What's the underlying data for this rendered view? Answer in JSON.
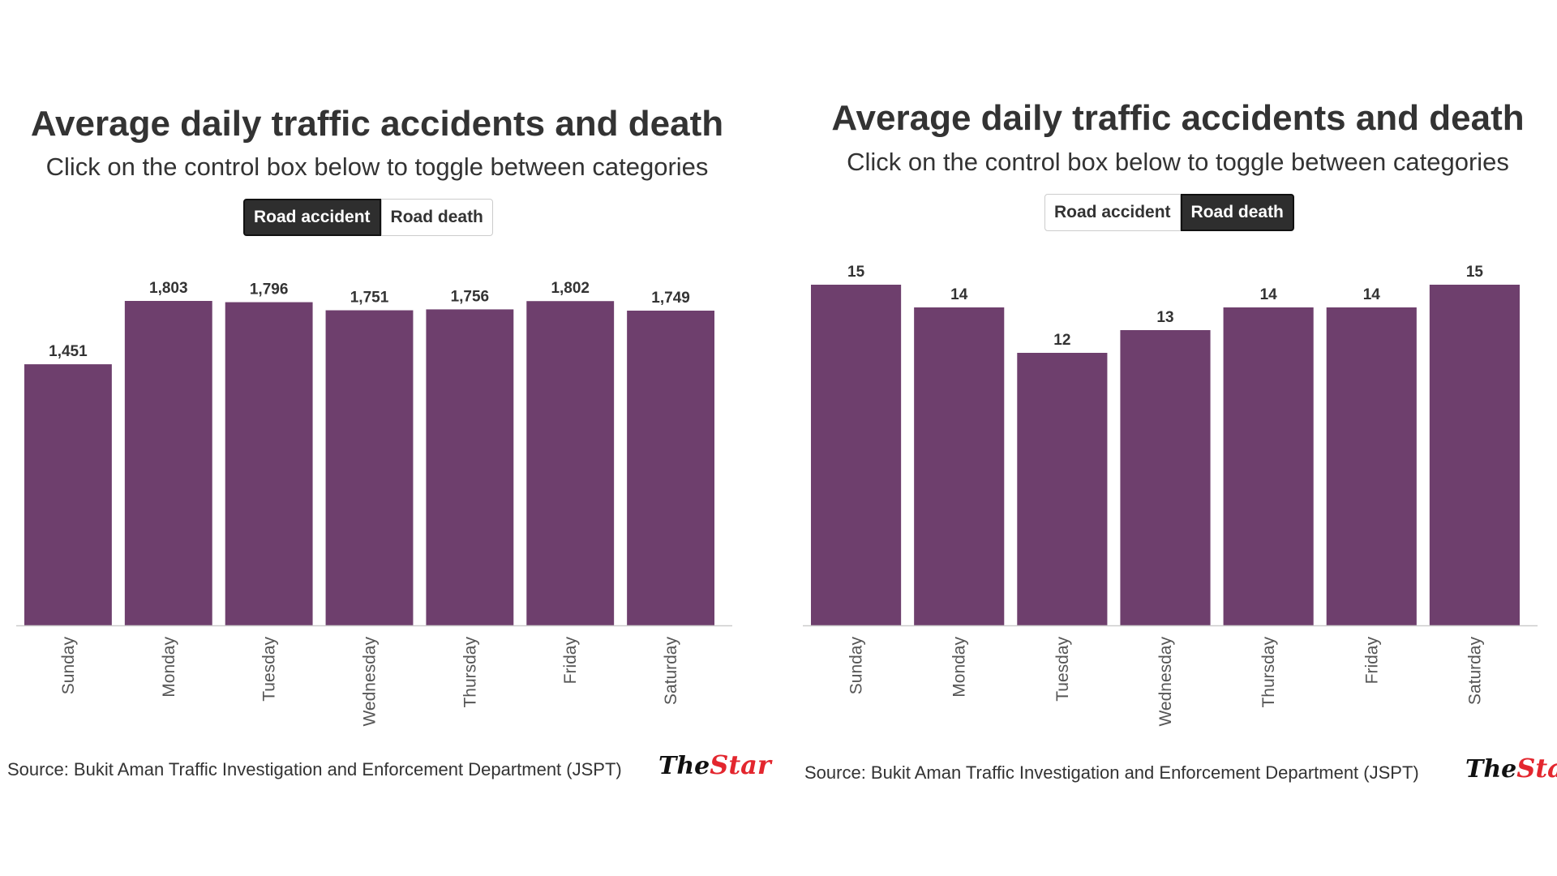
{
  "colors": {
    "bar": "#6e3f6d",
    "axis": "#cccccc",
    "text": "#333333",
    "active_bg": "#2e2e2e",
    "logo_red": "#e3262e"
  },
  "panels": [
    {
      "title": "Average daily traffic accidents and death",
      "subtitle": "Click on the control box below to toggle between categories",
      "toggles": [
        {
          "label": "Road accident",
          "active": true
        },
        {
          "label": "Road death",
          "active": false
        }
      ],
      "source": "Source: Bukit Aman Traffic Investigation and Enforcement Department (JSPT)",
      "logo": {
        "the": "The",
        "star": "Star"
      }
    },
    {
      "title": "Average daily traffic accidents and death",
      "subtitle": "Click on the control box below to toggle between categories",
      "toggles": [
        {
          "label": "Road accident",
          "active": false
        },
        {
          "label": "Road death",
          "active": true
        }
      ],
      "source": "Source: Bukit Aman Traffic Investigation and Enforcement Department (JSPT)",
      "logo": {
        "the": "The",
        "star": "Star"
      }
    }
  ],
  "chart_data": [
    {
      "type": "bar",
      "title": "Average daily traffic accidents and death",
      "subtitle": "Click on the control box below to toggle between categories",
      "categories": [
        "Sunday",
        "Monday",
        "Tuesday",
        "Wednesday",
        "Thursday",
        "Friday",
        "Saturday"
      ],
      "values": [
        1451,
        1803,
        1796,
        1751,
        1756,
        1802,
        1749
      ],
      "value_labels": [
        "1,451",
        "1,803",
        "1,796",
        "1,751",
        "1,756",
        "1,802",
        "1,749"
      ],
      "ylim": [
        0,
        1803
      ],
      "grid": false,
      "xlabel": "",
      "ylabel": "",
      "selected_category": "Road accident"
    },
    {
      "type": "bar",
      "title": "Average daily traffic accidents and death",
      "subtitle": "Click on the control box below to toggle between categories",
      "categories": [
        "Sunday",
        "Monday",
        "Tuesday",
        "Wednesday",
        "Thursday",
        "Friday",
        "Saturday"
      ],
      "values": [
        15,
        14,
        12,
        13,
        14,
        14,
        15
      ],
      "value_labels": [
        "15",
        "14",
        "12",
        "13",
        "14",
        "14",
        "15"
      ],
      "ylim": [
        0,
        15
      ],
      "grid": false,
      "xlabel": "",
      "ylabel": "",
      "selected_category": "Road death"
    }
  ]
}
